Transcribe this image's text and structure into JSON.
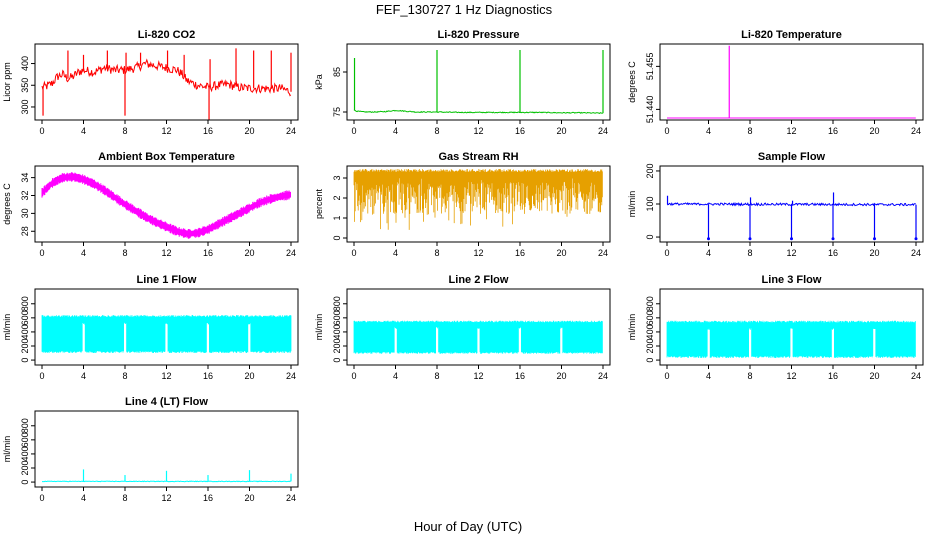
{
  "figure": {
    "title": "FEF_130727  1 Hz Diagnostics",
    "xlabel": "Hour of Day (UTC)"
  },
  "chart_data": [
    {
      "type": "line",
      "title": "Li-820 CO2",
      "ylabel": "Licor ppm",
      "color": "#ff0000",
      "x_ticks": [
        "0",
        "4",
        "8",
        "12",
        "16",
        "20",
        "24"
      ],
      "y_ticks": [
        300,
        350,
        400
      ],
      "xlim": [
        0,
        24
      ],
      "ylim": [
        270,
        445
      ],
      "x": [
        0,
        0.5,
        1,
        1.5,
        2,
        2.5,
        3,
        3.5,
        4,
        5,
        6,
        7,
        8,
        9,
        10,
        11,
        12,
        13,
        13.5,
        14,
        15,
        16,
        17,
        18,
        19,
        20,
        21,
        22,
        23,
        24
      ],
      "values": [
        345,
        348,
        355,
        370,
        375,
        365,
        370,
        380,
        385,
        380,
        390,
        385,
        385,
        390,
        400,
        395,
        390,
        385,
        375,
        360,
        350,
        345,
        350,
        352,
        345,
        343,
        343,
        342,
        343,
        335
      ],
      "spikes": [
        {
          "x": 0.1,
          "y": 280
        },
        {
          "x": 2.5,
          "y": 430
        },
        {
          "x": 4.0,
          "y": 420
        },
        {
          "x": 6.3,
          "y": 430
        },
        {
          "x": 8.0,
          "y": 280
        },
        {
          "x": 8.1,
          "y": 425
        },
        {
          "x": 9.5,
          "y": 425
        },
        {
          "x": 12.1,
          "y": 430
        },
        {
          "x": 13.7,
          "y": 420
        },
        {
          "x": 16.1,
          "y": 270
        },
        {
          "x": 16.2,
          "y": 410
        },
        {
          "x": 18.7,
          "y": 435
        },
        {
          "x": 20.4,
          "y": 430
        },
        {
          "x": 22.1,
          "y": 430
        },
        {
          "x": 24.0,
          "y": 425
        }
      ]
    },
    {
      "type": "line",
      "title": "Li-820 Pressure",
      "ylabel": "kPa",
      "color": "#00c000",
      "x_ticks": [
        "0",
        "4",
        "8",
        "12",
        "16",
        "20",
        "24"
      ],
      "y_ticks": [
        75,
        85
      ],
      "xlim": [
        0,
        24
      ],
      "ylim": [
        73,
        92
      ],
      "x": [
        0,
        0.3,
        1,
        2,
        3,
        4,
        5,
        6,
        7,
        8,
        10,
        12,
        14,
        16,
        18,
        20,
        22,
        24
      ],
      "values": [
        75.5,
        75.2,
        75.0,
        75.0,
        75.1,
        75.4,
        75.2,
        75.0,
        75.0,
        75.0,
        74.9,
        74.9,
        74.9,
        74.9,
        74.9,
        74.8,
        74.8,
        74.7
      ],
      "spikes": [
        {
          "x": 0.05,
          "y": 88.5
        },
        {
          "x": 8.0,
          "y": 90.5
        },
        {
          "x": 16.0,
          "y": 90.5
        },
        {
          "x": 24.0,
          "y": 90.5
        }
      ]
    },
    {
      "type": "line",
      "title": "Li-820 Temperature",
      "ylabel": "degrees C",
      "color": "#ff00ff",
      "x_ticks": [
        "0",
        "4",
        "8",
        "12",
        "16",
        "20",
        "24"
      ],
      "y_ticks": [
        "51.440",
        "51.455"
      ],
      "y_tick_values": [
        51.44,
        51.455
      ],
      "xlim": [
        0,
        24
      ],
      "ylim": [
        51.4363,
        51.4628
      ],
      "x": [
        0,
        24
      ],
      "values": [
        51.437,
        51.437
      ],
      "spikes": [
        {
          "x": 6.0,
          "y": 51.4622
        }
      ]
    },
    {
      "type": "line",
      "title": "Ambient Box Temperature",
      "ylabel": "degrees C",
      "color": "#ff00ff",
      "x_ticks": [
        "0",
        "4",
        "8",
        "12",
        "16",
        "20",
        "24"
      ],
      "y_ticks": [
        28,
        30,
        32,
        34
      ],
      "xlim": [
        0,
        24
      ],
      "ylim": [
        26.8,
        35.3
      ],
      "x": [
        0,
        1,
        2,
        3,
        4,
        5,
        6,
        7,
        8,
        9,
        10,
        11,
        12,
        13,
        14,
        15,
        16,
        17,
        18,
        19,
        20,
        21,
        22,
        23,
        24
      ],
      "values": [
        32.3,
        33.4,
        34.0,
        34.1,
        33.8,
        33.3,
        32.6,
        31.8,
        31.0,
        30.3,
        29.6,
        29.0,
        28.5,
        28.0,
        27.7,
        27.8,
        28.2,
        28.8,
        29.4,
        30.0,
        30.6,
        31.2,
        31.6,
        31.9,
        32.1
      ],
      "band": 1.0
    },
    {
      "type": "line",
      "title": "Gas Stream RH",
      "ylabel": "percent",
      "color": "#e6a000",
      "x_ticks": [
        "0",
        "4",
        "8",
        "12",
        "16",
        "20",
        "24"
      ],
      "y_ticks": [
        0,
        1,
        2,
        3
      ],
      "xlim": [
        0,
        24
      ],
      "ylim": [
        -0.2,
        3.6
      ],
      "x": [
        0,
        24
      ],
      "values": [
        3.3,
        3.3
      ],
      "band_low": 0.4,
      "band_high": 3.45
    },
    {
      "type": "line",
      "title": "Sample Flow",
      "ylabel": "ml/min",
      "color": "#0000ff",
      "x_ticks": [
        "0",
        "4",
        "8",
        "12",
        "16",
        "20",
        "24"
      ],
      "y_ticks": [
        0,
        100,
        200
      ],
      "xlim": [
        0,
        24
      ],
      "ylim": [
        -15,
        215
      ],
      "x": [
        0,
        24
      ],
      "values": [
        100,
        98
      ],
      "spikes": [
        {
          "x": 0.05,
          "y": 125
        },
        {
          "x": 4.0,
          "y": -5
        },
        {
          "x": 8.0,
          "y": -5
        },
        {
          "x": 8.05,
          "y": 120
        },
        {
          "x": 12.0,
          "y": -5
        },
        {
          "x": 12.1,
          "y": 110
        },
        {
          "x": 16.0,
          "y": -5
        },
        {
          "x": 16.05,
          "y": 135
        },
        {
          "x": 20.0,
          "y": -5
        },
        {
          "x": 24.0,
          "y": -5
        }
      ]
    },
    {
      "type": "line",
      "title": "Line 1 Flow",
      "ylabel": "ml/min",
      "color": "#00ffff",
      "x_ticks": [
        "0",
        "4",
        "8",
        "12",
        "16",
        "20",
        "24"
      ],
      "y_ticks": [
        0,
        200,
        400,
        600,
        800
      ],
      "xlim": [
        0,
        24
      ],
      "ylim": [
        -70,
        1010
      ],
      "x": [
        0,
        24
      ],
      "values": [
        620,
        620
      ],
      "band_low": 100,
      "band_high": 640,
      "gaps": [
        4,
        8,
        12,
        16,
        20
      ]
    },
    {
      "type": "line",
      "title": "Line 2 Flow",
      "ylabel": "ml/min",
      "color": "#00ffff",
      "x_ticks": [
        "0",
        "4",
        "8",
        "12",
        "16",
        "20",
        "24"
      ],
      "y_ticks": [
        0,
        200,
        400,
        600,
        800
      ],
      "xlim": [
        0,
        24
      ],
      "ylim": [
        -70,
        1010
      ],
      "x": [
        0,
        24
      ],
      "values": [
        540,
        540
      ],
      "band_low": 90,
      "band_high": 560,
      "gaps": [
        4,
        8,
        12,
        16,
        20
      ]
    },
    {
      "type": "line",
      "title": "Line 3 Flow",
      "ylabel": "ml/min",
      "color": "#00ffff",
      "x_ticks": [
        "0",
        "4",
        "8",
        "12",
        "16",
        "20",
        "24"
      ],
      "y_ticks": [
        0,
        200,
        400,
        600,
        800
      ],
      "xlim": [
        0,
        24
      ],
      "ylim": [
        -70,
        1010
      ],
      "x": [
        0,
        24
      ],
      "values": [
        540,
        540
      ],
      "band_low": 30,
      "band_high": 560,
      "gaps": [
        4,
        8,
        12,
        16,
        20
      ]
    },
    {
      "type": "line",
      "title": "Line 4 (LT) Flow",
      "ylabel": "ml/min",
      "color": "#00ffff",
      "x_ticks": [
        "0",
        "4",
        "8",
        "12",
        "16",
        "20",
        "24"
      ],
      "y_ticks": [
        0,
        200,
        400,
        600,
        800
      ],
      "xlim": [
        0,
        24
      ],
      "ylim": [
        -70,
        1010
      ],
      "x": [
        0,
        24
      ],
      "values": [
        10,
        10
      ],
      "spikes": [
        {
          "x": 4.0,
          "y": 180
        },
        {
          "x": 8.0,
          "y": 100
        },
        {
          "x": 12.0,
          "y": 160
        },
        {
          "x": 16.0,
          "y": 100
        },
        {
          "x": 20.0,
          "y": 170
        },
        {
          "x": 24.0,
          "y": 120
        }
      ]
    }
  ]
}
